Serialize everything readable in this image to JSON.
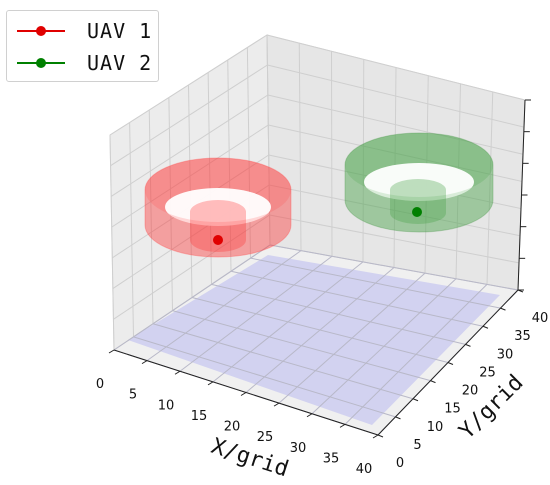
{
  "chart_data": {
    "type": "3d-surface",
    "title": "",
    "xlabel": "X/grid",
    "ylabel": "Y/grid",
    "zlabel": "",
    "xlim": [
      0,
      40
    ],
    "ylim": [
      0,
      40
    ],
    "x_ticks": [
      "0",
      "5",
      "10",
      "15",
      "20",
      "25",
      "30",
      "35",
      "40"
    ],
    "y_ticks": [
      "0",
      "5",
      "10",
      "15",
      "20",
      "25",
      "30",
      "35",
      "40"
    ],
    "z_ticks": [
      "",
      "",
      "",
      "",
      "",
      "",
      ""
    ],
    "grid": true,
    "legend_position": "top-left",
    "ground_color": "#c8c8f0",
    "series": [
      {
        "name": "UAV 1",
        "color": "#e00000",
        "marker": "o"
      },
      {
        "name": "UAV 2",
        "color": "#008000",
        "marker": "o"
      }
    ]
  },
  "legend": [
    {
      "label": "UAV 1",
      "color": "#e00000"
    },
    {
      "label": "UAV 2",
      "color": "#008000"
    }
  ]
}
